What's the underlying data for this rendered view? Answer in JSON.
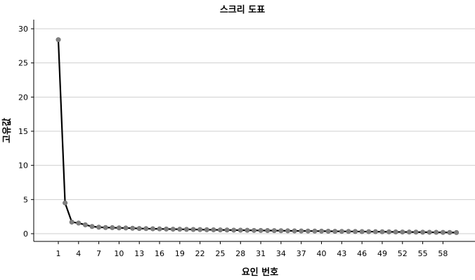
{
  "chart_data": {
    "type": "line",
    "title": "스크리 도표",
    "xlabel": "요인 번호",
    "ylabel": "고유값",
    "x_tick_labels": [
      "1",
      "4",
      "7",
      "10",
      "13",
      "16",
      "19",
      "22",
      "25",
      "28",
      "31",
      "34",
      "37",
      "40",
      "43",
      "46",
      "49",
      "52",
      "55",
      "58"
    ],
    "y_tick_labels": [
      "0",
      "5",
      "10",
      "15",
      "20",
      "25",
      "30"
    ],
    "xlim": [
      1,
      60
    ],
    "ylim": [
      -1,
      31
    ],
    "grid": "horizontal",
    "colors": {
      "line": "#000000",
      "marker": "#808080",
      "grid": "#cfcfcf"
    },
    "series": [
      {
        "x": [
          1,
          2,
          3,
          4,
          5,
          6,
          7,
          8,
          9,
          10,
          11,
          12,
          13,
          14,
          15,
          16,
          17,
          18,
          19,
          20,
          21,
          22,
          23,
          24,
          25,
          26,
          27,
          28,
          29,
          30,
          31,
          32,
          33,
          34,
          35,
          36,
          37,
          38,
          39,
          40,
          41,
          42,
          43,
          44,
          45,
          46,
          47,
          48,
          49,
          50,
          51,
          52,
          53,
          54,
          55,
          56,
          57,
          58,
          59,
          60
        ],
        "values": [
          28.4,
          4.5,
          1.7,
          1.55,
          1.3,
          1.05,
          0.95,
          0.9,
          0.88,
          0.85,
          0.83,
          0.8,
          0.76,
          0.74,
          0.72,
          0.7,
          0.68,
          0.66,
          0.65,
          0.63,
          0.62,
          0.6,
          0.58,
          0.57,
          0.55,
          0.54,
          0.52,
          0.51,
          0.5,
          0.48,
          0.47,
          0.46,
          0.45,
          0.44,
          0.42,
          0.41,
          0.4,
          0.39,
          0.38,
          0.37,
          0.36,
          0.35,
          0.34,
          0.33,
          0.32,
          0.31,
          0.3,
          0.29,
          0.28,
          0.27,
          0.26,
          0.25,
          0.24,
          0.23,
          0.22,
          0.21,
          0.2,
          0.19,
          0.18,
          0.17
        ]
      }
    ]
  }
}
